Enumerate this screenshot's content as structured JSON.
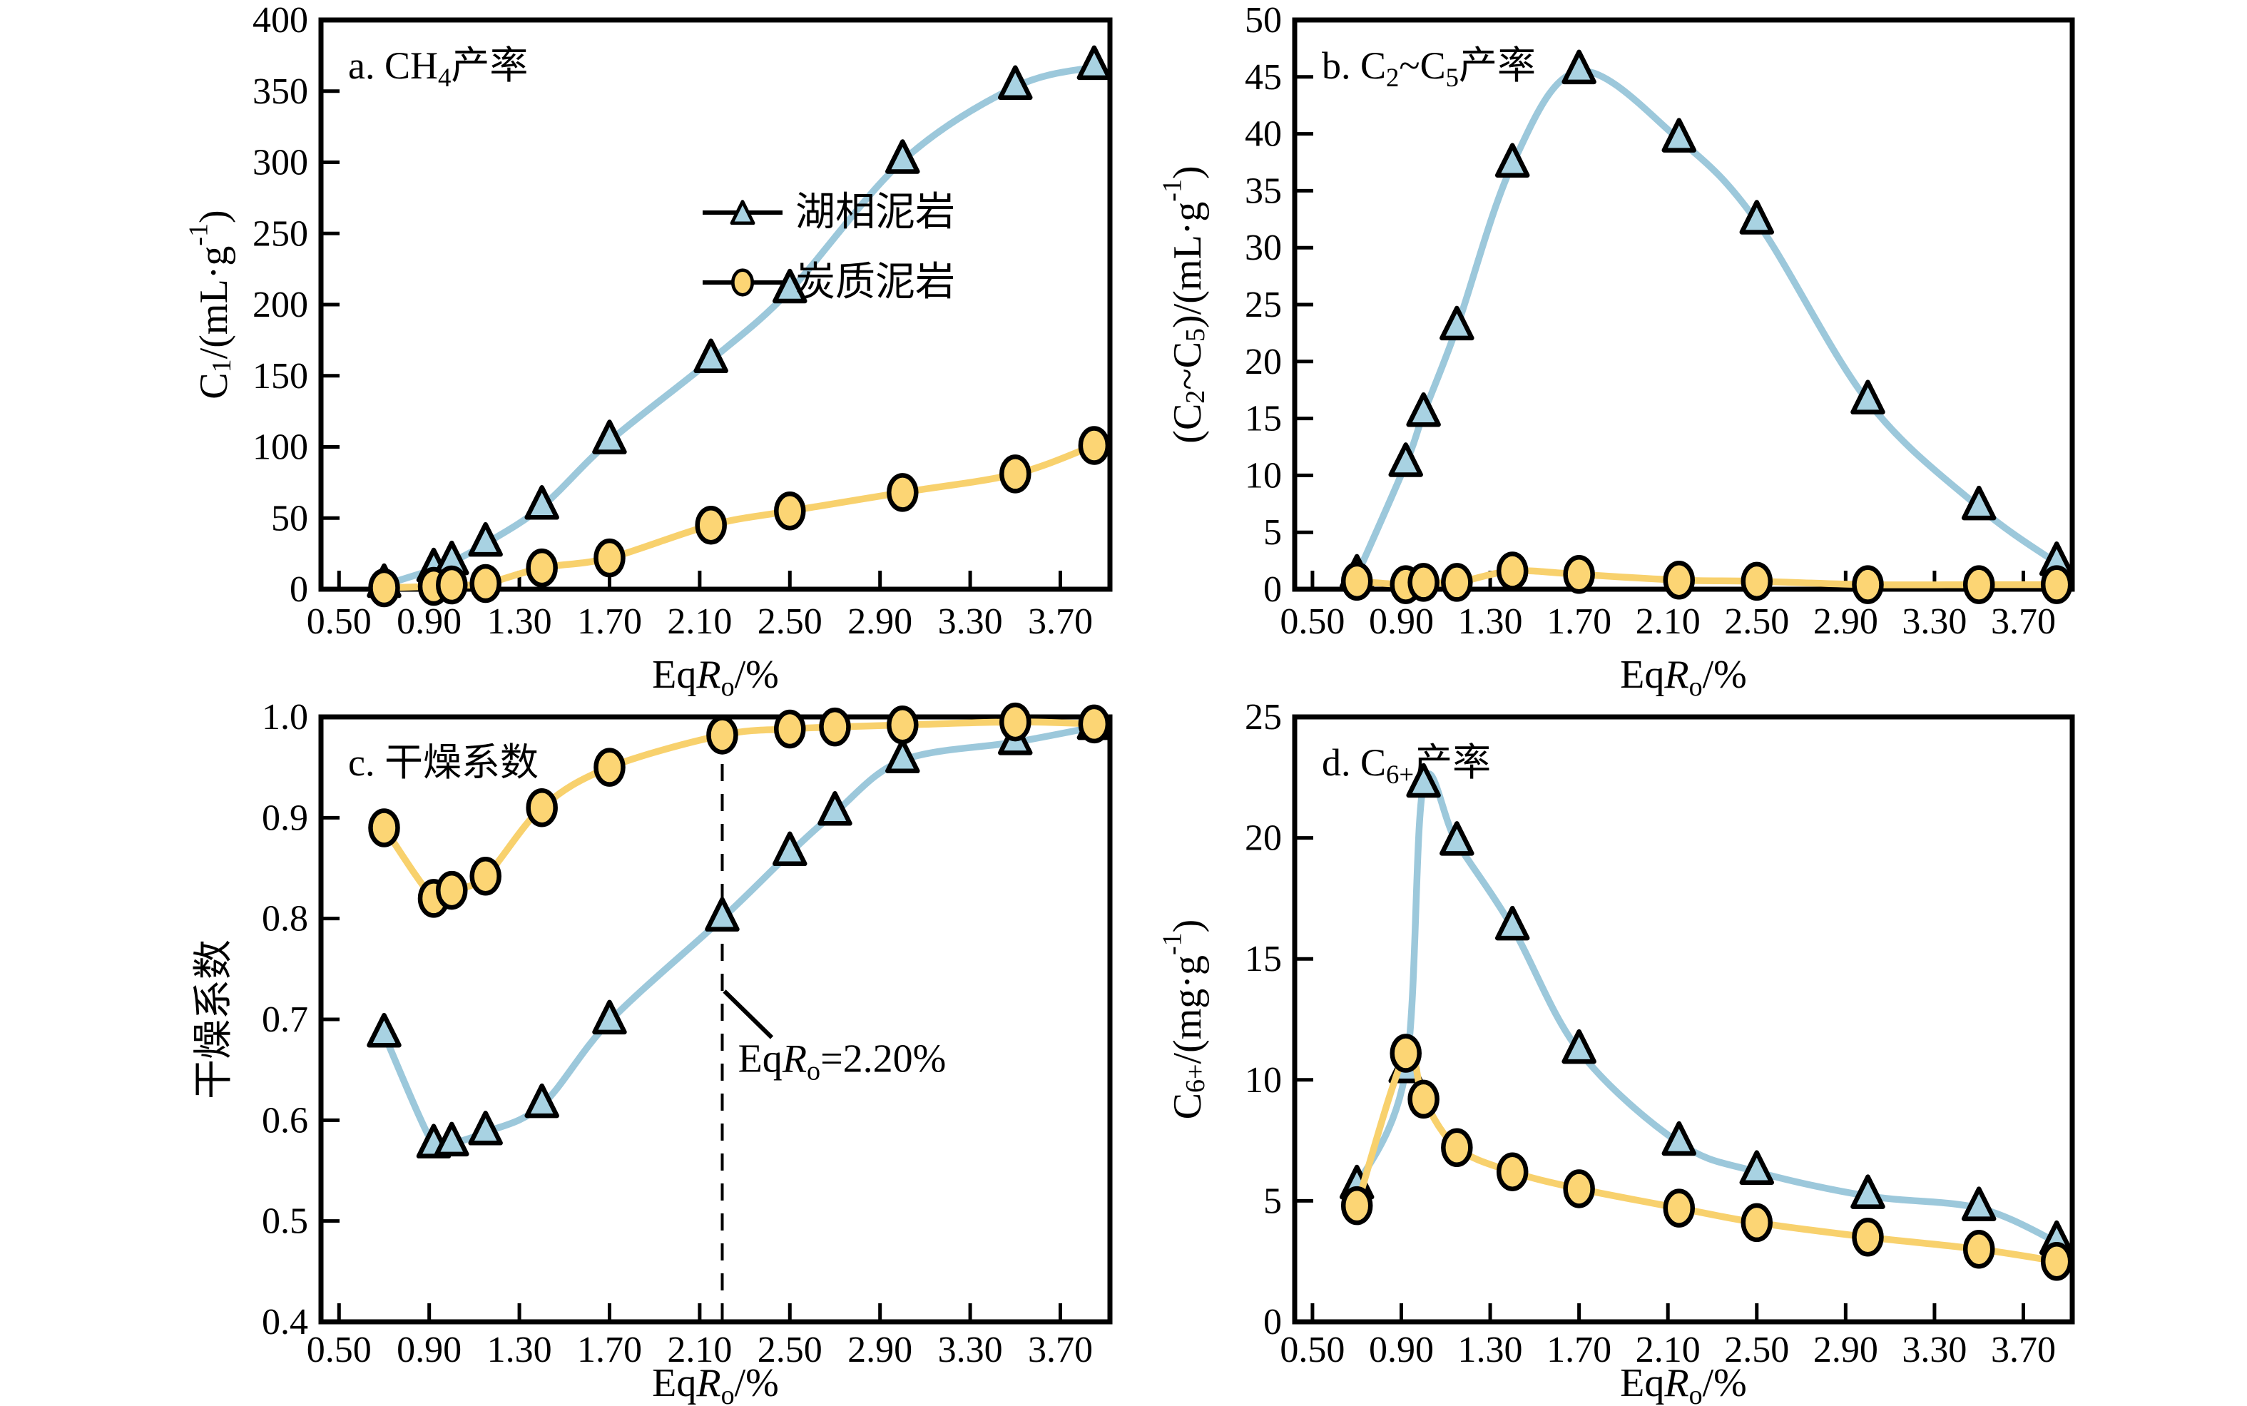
{
  "figure": {
    "background": "#ffffff",
    "axis_color": "#000000",
    "accent_blue": "#9cc8db",
    "accent_yellow": "#f8d16d"
  },
  "chart_data": [
    {
      "id": "a",
      "type": "line",
      "title": "a. CH_{4}产率",
      "xlabel": "Eq*R*_{o}/%",
      "ylabel": "C_{1}/(mL·g^{-1})",
      "xlim": [
        0.42,
        3.92
      ],
      "ylim": [
        0,
        400
      ],
      "grid": false,
      "legend_position": "upper-center-right",
      "xticks": {
        "values": [
          0.5,
          0.9,
          1.3,
          1.7,
          2.1,
          2.5,
          2.9,
          3.3,
          3.7
        ],
        "labels": [
          "0.50",
          "0.90",
          "1.30",
          "1.70",
          "2.10",
          "2.50",
          "2.90",
          "3.30",
          "3.70"
        ]
      },
      "yticks": {
        "values": [
          0,
          50,
          100,
          150,
          200,
          250,
          300,
          350,
          400
        ],
        "labels": [
          "0",
          "50",
          "100",
          "150",
          "200",
          "250",
          "300",
          "350",
          "400"
        ]
      },
      "series": [
        {
          "name": "湖相泥岩",
          "key": "lacustrine-mudstone",
          "marker": "triangle",
          "line_color": "#9cc8db",
          "fill_color": "#a8d2e2",
          "x": [
            0.7,
            0.92,
            1.0,
            1.15,
            1.4,
            1.7,
            2.15,
            2.5,
            3.0,
            3.5,
            3.85
          ],
          "y": [
            3,
            14,
            19,
            32,
            58,
            104,
            161,
            210,
            301,
            353,
            367
          ]
        },
        {
          "name": "炭质泥岩",
          "key": "carbonaceous-mudstone",
          "marker": "circle",
          "line_color": "#f8d16d",
          "fill_color": "#fcd574",
          "x": [
            0.7,
            0.92,
            1.0,
            1.15,
            1.4,
            1.7,
            2.15,
            2.5,
            3.0,
            3.5,
            3.85
          ],
          "y": [
            1,
            2,
            3,
            4,
            15,
            22,
            45,
            55,
            68,
            81,
            101
          ]
        }
      ],
      "show_legend": true
    },
    {
      "id": "b",
      "type": "line",
      "title": "b. C_{2}~C_{5}产率",
      "xlabel": "Eq*R*_{o}/%",
      "ylabel": "(C_{2}~C_{5})/(mL·g^{-1})",
      "xlim": [
        0.42,
        3.92
      ],
      "ylim": [
        0,
        50
      ],
      "grid": false,
      "xticks": {
        "values": [
          0.5,
          0.9,
          1.3,
          1.7,
          2.1,
          2.5,
          2.9,
          3.3,
          3.7
        ],
        "labels": [
          "0.50",
          "0.90",
          "1.30",
          "1.70",
          "2.10",
          "2.50",
          "2.90",
          "3.30",
          "3.70"
        ]
      },
      "yticks": {
        "values": [
          0,
          5,
          10,
          15,
          20,
          25,
          30,
          35,
          40,
          45,
          50
        ],
        "labels": [
          "0",
          "5",
          "10",
          "15",
          "20",
          "25",
          "30",
          "35",
          "40",
          "45",
          "50"
        ]
      },
      "series": [
        {
          "name": "湖相泥岩",
          "key": "lacustrine-mudstone",
          "marker": "triangle",
          "line_color": "#9cc8db",
          "fill_color": "#a8d2e2",
          "x": [
            0.7,
            0.92,
            1.0,
            1.15,
            1.4,
            1.7,
            2.15,
            2.5,
            3.0,
            3.5,
            3.85
          ],
          "y": [
            1.2,
            11.0,
            15.4,
            23.0,
            37.3,
            45.5,
            39.5,
            32.3,
            16.5,
            7.2,
            2.3
          ]
        },
        {
          "name": "炭质泥岩",
          "key": "carbonaceous-mudstone",
          "marker": "circle",
          "line_color": "#f8d16d",
          "fill_color": "#fcd574",
          "x": [
            0.7,
            0.92,
            1.0,
            1.15,
            1.4,
            1.7,
            2.15,
            2.5,
            3.0,
            3.5,
            3.85
          ],
          "y": [
            0.7,
            0.4,
            0.6,
            0.6,
            1.6,
            1.3,
            0.8,
            0.7,
            0.4,
            0.4,
            0.4
          ]
        }
      ],
      "show_legend": false
    },
    {
      "id": "c",
      "type": "line",
      "title": "c. 干燥系数",
      "xlabel": "Eq*R*_{o}/%",
      "ylabel": "干燥系数",
      "xlim": [
        0.42,
        3.92
      ],
      "ylim": [
        0.4,
        1.0
      ],
      "grid": false,
      "xticks": {
        "values": [
          0.5,
          0.9,
          1.3,
          1.7,
          2.1,
          2.5,
          2.9,
          3.3,
          3.7
        ],
        "labels": [
          "0.50",
          "0.90",
          "1.30",
          "1.70",
          "2.10",
          "2.50",
          "2.90",
          "3.30",
          "3.70"
        ]
      },
      "yticks": {
        "values": [
          0.4,
          0.5,
          0.6,
          0.7,
          0.8,
          0.9,
          1.0
        ],
        "labels": [
          "0.4",
          "0.5",
          "0.6",
          "0.7",
          "0.8",
          "0.9",
          "1.0"
        ]
      },
      "series": [
        {
          "name": "湖相泥岩",
          "key": "lacustrine-mudstone",
          "marker": "triangle",
          "line_color": "#9cc8db",
          "fill_color": "#a8d2e2",
          "x": [
            0.7,
            0.92,
            1.0,
            1.15,
            1.4,
            1.7,
            2.2,
            2.5,
            2.7,
            3.0,
            3.5,
            3.85
          ],
          "y": [
            0.685,
            0.575,
            0.577,
            0.588,
            0.615,
            0.698,
            0.8,
            0.865,
            0.905,
            0.957,
            0.975,
            0.99
          ]
        },
        {
          "name": "炭质泥岩",
          "key": "carbonaceous-mudstone",
          "marker": "circle",
          "line_color": "#f8d16d",
          "fill_color": "#fcd574",
          "x": [
            0.7,
            0.92,
            1.0,
            1.15,
            1.4,
            1.7,
            2.2,
            2.5,
            2.7,
            3.0,
            3.5,
            3.85
          ],
          "y": [
            0.89,
            0.82,
            0.828,
            0.842,
            0.91,
            0.95,
            0.982,
            0.988,
            0.99,
            0.992,
            0.995,
            0.993
          ]
        }
      ],
      "show_legend": false,
      "annotation": {
        "x": 2.2,
        "line_top_y": 0.985,
        "label": "Eq*R*_{o}=2.20%"
      }
    },
    {
      "id": "d",
      "type": "line",
      "title": "d. C_{6+}产率",
      "xlabel": "Eq*R*_{o}/%",
      "ylabel": "C_{6+}/(mg·g^{-1})",
      "xlim": [
        0.42,
        3.92
      ],
      "ylim": [
        0,
        25
      ],
      "grid": false,
      "xticks": {
        "values": [
          0.5,
          0.9,
          1.3,
          1.7,
          2.1,
          2.5,
          2.9,
          3.3,
          3.7
        ],
        "labels": [
          "0.50",
          "0.90",
          "1.30",
          "1.70",
          "2.10",
          "2.50",
          "2.90",
          "3.30",
          "3.70"
        ]
      },
      "yticks": {
        "values": [
          0,
          5,
          10,
          15,
          20,
          25
        ],
        "labels": [
          "0",
          "5",
          "10",
          "15",
          "20",
          "25"
        ]
      },
      "series": [
        {
          "name": "湖相泥岩",
          "key": "lacustrine-mudstone",
          "marker": "triangle",
          "line_color": "#9cc8db",
          "fill_color": "#a8d2e2",
          "x": [
            0.7,
            0.92,
            1.0,
            1.15,
            1.4,
            1.7,
            2.15,
            2.5,
            3.0,
            3.5,
            3.85
          ],
          "y": [
            5.6,
            10.4,
            22.2,
            19.8,
            16.3,
            11.2,
            7.4,
            6.2,
            5.2,
            4.7,
            3.3
          ]
        },
        {
          "name": "炭质泥岩",
          "key": "carbonaceous-mudstone",
          "marker": "circle",
          "line_color": "#f8d16d",
          "fill_color": "#fcd574",
          "x": [
            0.7,
            0.92,
            1.0,
            1.15,
            1.4,
            1.7,
            2.15,
            2.5,
            3.0,
            3.5,
            3.85
          ],
          "y": [
            4.8,
            11.1,
            9.2,
            7.2,
            6.2,
            5.5,
            4.7,
            4.1,
            3.5,
            3.0,
            2.5
          ]
        }
      ],
      "show_legend": false
    }
  ]
}
